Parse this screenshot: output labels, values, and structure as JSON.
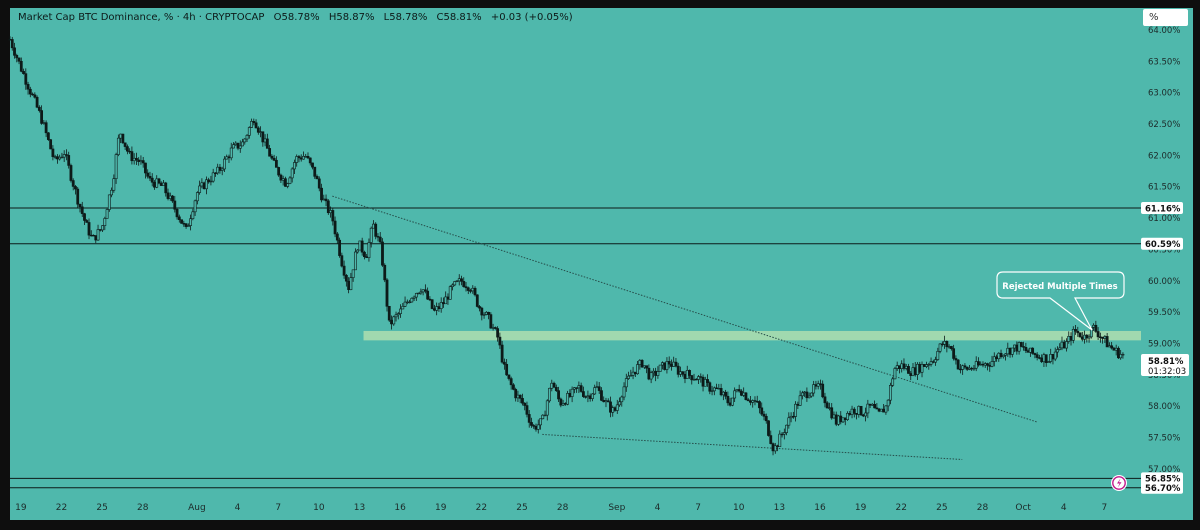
{
  "legend": {
    "symbol": "Market Cap BTC Dominance, % · 4h · CRYPTOCAP",
    "open": "O58.78%",
    "high": "H58.87%",
    "low": "L58.78%",
    "close": "C58.81%",
    "change": "+0.03 (+0.05%)"
  },
  "unit_button": "%",
  "colors": {
    "background": "#4fb8ac",
    "candle": "#0d1a19",
    "level_line": "#0d1a19",
    "resistance_zone": "#d9efb0",
    "price_badge": "#ffffff",
    "tool_icon": "#c2188b"
  },
  "annotation": {
    "text": "Rejected Multiple Times"
  },
  "price_label": {
    "value": "58.81%",
    "countdown": "01:32:03"
  },
  "chart_data": {
    "type": "candlestick",
    "title": "Market Cap BTC Dominance, % · 4h · CRYPTOCAP",
    "ylabel": "%",
    "ylim": [
      56.6,
      64.35
    ],
    "y_ticks": [
      "64.00%",
      "63.50%",
      "63.00%",
      "62.50%",
      "62.00%",
      "61.50%",
      "61.00%",
      "60.50%",
      "60.00%",
      "59.50%",
      "59.00%",
      "58.50%",
      "58.00%",
      "57.50%",
      "57.00%"
    ],
    "y_tick_values": [
      64.0,
      63.5,
      63.0,
      62.5,
      62.0,
      61.5,
      61.0,
      60.5,
      60.0,
      59.5,
      59.0,
      58.5,
      58.0,
      57.5,
      57.0
    ],
    "x_ticks": [
      "19",
      "22",
      "25",
      "28",
      "Aug",
      "4",
      "7",
      "10",
      "13",
      "16",
      "19",
      "22",
      "25",
      "28",
      "Sep",
      "4",
      "7",
      "10",
      "13",
      "16",
      "19",
      "22",
      "25",
      "28",
      "Oct",
      "4",
      "7"
    ],
    "x_tick_days": [
      0,
      3,
      6,
      9,
      13,
      16,
      19,
      22,
      25,
      28,
      31,
      34,
      37,
      40,
      44,
      47,
      50,
      53,
      56,
      59,
      62,
      65,
      68,
      71,
      74,
      77,
      80
    ],
    "x_range_days": [
      -0.8,
      82.7
    ],
    "horizontal_levels": [
      {
        "value": 61.16,
        "label": "61.16%"
      },
      {
        "value": 60.59,
        "label": "60.59%"
      },
      {
        "value": 56.85,
        "label": "56.85%"
      },
      {
        "value": 56.7,
        "label": "56.70%"
      }
    ],
    "resistance_zone": [
      59.05,
      59.2
    ],
    "trendlines": [
      {
        "name": "descending resistance",
        "from": [
          23.0,
          61.35
        ],
        "to": [
          75.0,
          57.75
        ]
      },
      {
        "name": "lower support",
        "from": [
          38.5,
          57.55
        ],
        "to": [
          69.5,
          57.15
        ]
      }
    ],
    "current_price": 58.81,
    "price_path": [
      [
        -0.8,
        63.85
      ],
      [
        0.0,
        63.4
      ],
      [
        1.5,
        62.6
      ],
      [
        2.5,
        61.9
      ],
      [
        3.2,
        62.05
      ],
      [
        4.2,
        61.3
      ],
      [
        4.8,
        60.9
      ],
      [
        5.3,
        60.65
      ],
      [
        6.0,
        60.85
      ],
      [
        6.8,
        61.6
      ],
      [
        7.3,
        62.4
      ],
      [
        8.0,
        62.0
      ],
      [
        8.8,
        61.9
      ],
      [
        9.5,
        61.6
      ],
      [
        10.5,
        61.5
      ],
      [
        11.5,
        61.1
      ],
      [
        12.2,
        60.8
      ],
      [
        13.0,
        61.4
      ],
      [
        13.8,
        61.6
      ],
      [
        14.6,
        61.75
      ],
      [
        15.6,
        62.1
      ],
      [
        16.4,
        62.2
      ],
      [
        17.2,
        62.6
      ],
      [
        18.0,
        62.2
      ],
      [
        18.8,
        61.8
      ],
      [
        19.6,
        61.55
      ],
      [
        20.3,
        61.95
      ],
      [
        21.0,
        62.0
      ],
      [
        21.7,
        61.7
      ],
      [
        22.3,
        61.3
      ],
      [
        23.0,
        61.0
      ],
      [
        23.7,
        60.3
      ],
      [
        24.2,
        59.9
      ],
      [
        24.9,
        60.6
      ],
      [
        25.5,
        60.4
      ],
      [
        26.0,
        60.9
      ],
      [
        26.6,
        60.5
      ],
      [
        27.2,
        59.3
      ],
      [
        28.0,
        59.5
      ],
      [
        28.8,
        59.75
      ],
      [
        29.6,
        59.9
      ],
      [
        30.5,
        59.5
      ],
      [
        31.2,
        59.65
      ],
      [
        31.9,
        59.9
      ],
      [
        32.5,
        60.0
      ],
      [
        33.2,
        59.9
      ],
      [
        33.8,
        59.6
      ],
      [
        34.5,
        59.4
      ],
      [
        35.2,
        59.1
      ],
      [
        35.8,
        58.5
      ],
      [
        36.5,
        58.2
      ],
      [
        37.2,
        58.0
      ],
      [
        37.8,
        57.65
      ],
      [
        38.5,
        57.75
      ],
      [
        39.2,
        58.4
      ],
      [
        39.8,
        58.05
      ],
      [
        40.5,
        58.15
      ],
      [
        41.2,
        58.3
      ],
      [
        41.8,
        58.15
      ],
      [
        42.5,
        58.3
      ],
      [
        43.2,
        58.05
      ],
      [
        43.8,
        57.9
      ],
      [
        44.5,
        58.3
      ],
      [
        45.2,
        58.55
      ],
      [
        45.9,
        58.7
      ],
      [
        46.5,
        58.45
      ],
      [
        47.2,
        58.6
      ],
      [
        47.9,
        58.7
      ],
      [
        48.6,
        58.55
      ],
      [
        49.3,
        58.5
      ],
      [
        50.0,
        58.45
      ],
      [
        50.8,
        58.3
      ],
      [
        51.5,
        58.25
      ],
      [
        52.3,
        58.05
      ],
      [
        53.0,
        58.3
      ],
      [
        53.6,
        58.15
      ],
      [
        54.3,
        58.05
      ],
      [
        55.0,
        57.75
      ],
      [
        55.6,
        57.3
      ],
      [
        56.3,
        57.6
      ],
      [
        57.0,
        57.9
      ],
      [
        57.6,
        58.15
      ],
      [
        58.3,
        58.25
      ],
      [
        59.0,
        58.3
      ],
      [
        59.6,
        58.0
      ],
      [
        60.2,
        57.75
      ],
      [
        60.8,
        57.85
      ],
      [
        61.5,
        57.95
      ],
      [
        62.2,
        57.9
      ],
      [
        62.8,
        58.0
      ],
      [
        63.3,
        57.85
      ],
      [
        63.9,
        58.0
      ],
      [
        64.5,
        58.6
      ],
      [
        65.0,
        58.65
      ],
      [
        65.8,
        58.55
      ],
      [
        66.6,
        58.65
      ],
      [
        67.4,
        58.75
      ],
      [
        68.0,
        59.0
      ],
      [
        68.6,
        58.95
      ],
      [
        69.3,
        58.6
      ],
      [
        70.0,
        58.6
      ],
      [
        70.8,
        58.65
      ],
      [
        71.6,
        58.7
      ],
      [
        72.3,
        58.85
      ],
      [
        73.0,
        58.9
      ],
      [
        73.7,
        58.95
      ],
      [
        74.5,
        58.85
      ],
      [
        75.2,
        58.8
      ],
      [
        75.9,
        58.75
      ],
      [
        76.5,
        58.9
      ],
      [
        77.2,
        59.0
      ],
      [
        77.8,
        59.2
      ],
      [
        78.5,
        59.1
      ],
      [
        79.2,
        59.25
      ],
      [
        79.8,
        59.1
      ],
      [
        80.4,
        58.95
      ],
      [
        81.0,
        58.85
      ],
      [
        81.4,
        58.81
      ]
    ]
  }
}
